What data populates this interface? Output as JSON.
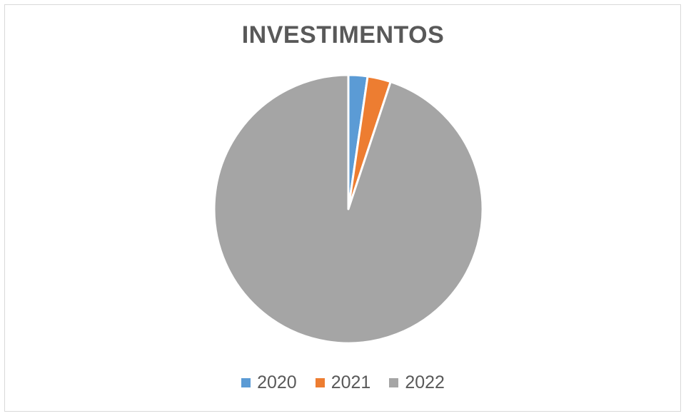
{
  "chart_data": {
    "type": "pie",
    "title": "INVESTIMENTOS",
    "categories": [
      "2020",
      "2021",
      "2022"
    ],
    "values": [
      2.3,
      2.8,
      94.9
    ],
    "colors": [
      "#5b9bd5",
      "#ed7d31",
      "#a5a5a5"
    ],
    "legend_position": "bottom",
    "start_angle": "top",
    "direction": "clockwise"
  }
}
